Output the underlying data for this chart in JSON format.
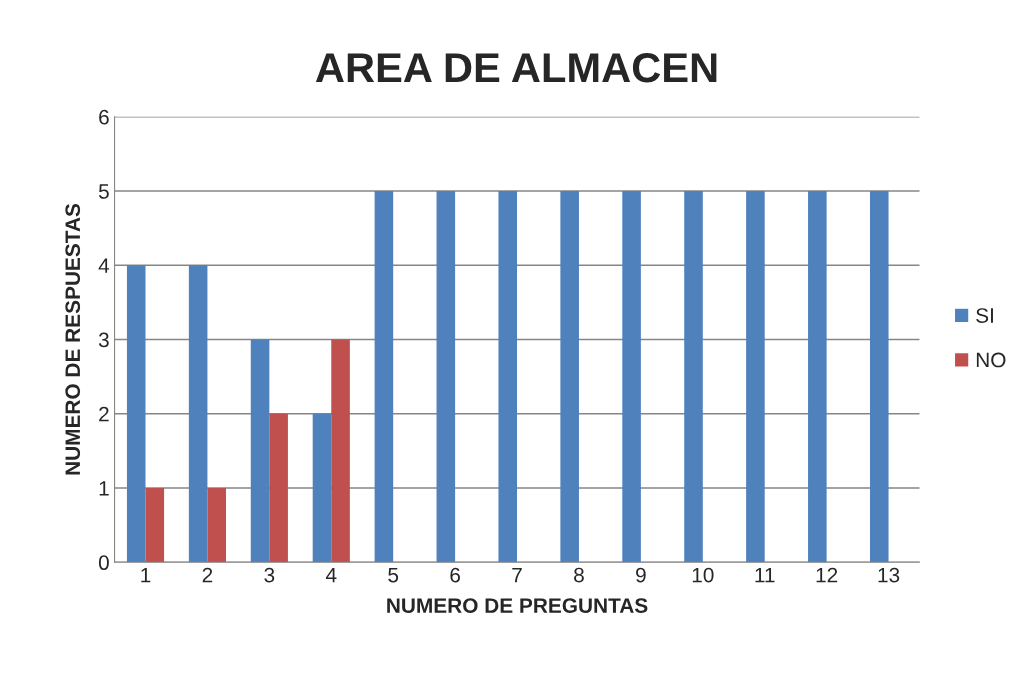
{
  "chart_data": {
    "type": "bar",
    "title": "AREA DE ALMACEN",
    "xlabel": "NUMERO DE PREGUNTAS",
    "ylabel": "NUMERO DE RESPUESTAS",
    "categories": [
      "1",
      "2",
      "3",
      "4",
      "5",
      "6",
      "7",
      "8",
      "9",
      "10",
      "11",
      "12",
      "13"
    ],
    "series": [
      {
        "name": "SI",
        "color": "#4f81bd",
        "values": [
          4,
          4,
          3,
          2,
          5,
          5,
          5,
          5,
          5,
          5,
          5,
          5,
          5
        ]
      },
      {
        "name": "NO",
        "color": "#c0504d",
        "values": [
          1,
          1,
          2,
          3,
          null,
          null,
          null,
          null,
          null,
          null,
          null,
          null,
          null
        ]
      }
    ],
    "ylim": [
      0,
      6
    ],
    "yticks": [
      0,
      1,
      2,
      3,
      4,
      5,
      6
    ],
    "grid": "y",
    "legend": "right"
  }
}
